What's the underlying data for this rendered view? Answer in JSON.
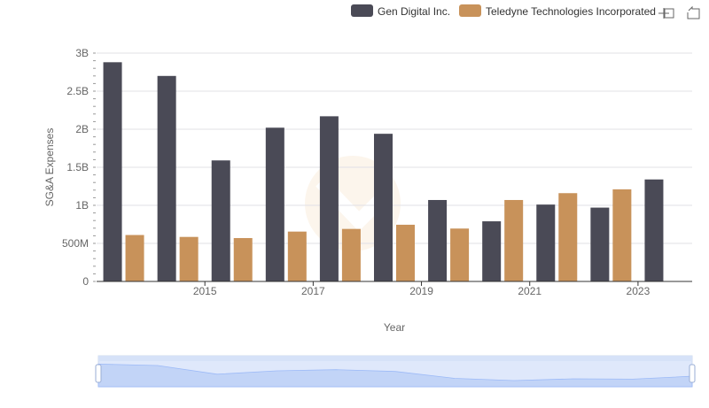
{
  "chart_data": {
    "type": "bar",
    "x": [
      2014,
      2015,
      2016,
      2017,
      2018,
      2019,
      2020,
      2021,
      2022,
      2023,
      2024
    ],
    "x_tick_labels": [
      "2015",
      "2017",
      "2019",
      "2021",
      "2023"
    ],
    "xlabel": "Year",
    "ylabel": "SG&A Expenses",
    "ylim": [
      0,
      3000000000
    ],
    "y_tick_labels": [
      "0",
      "500M",
      "1B",
      "1.5B",
      "2B",
      "2.5B",
      "3B"
    ],
    "grid": true,
    "legend_position": "top-right",
    "series": [
      {
        "name": "Gen Digital Inc.",
        "color": "#4a4a56",
        "values": [
          2880000000,
          2700000000,
          1590000000,
          2020000000,
          2170000000,
          1940000000,
          1070000000,
          790000000,
          1010000000,
          970000000,
          1340000000
        ]
      },
      {
        "name": "Teledyne Technologies Incorporated",
        "color": "#c8925a",
        "values": [
          610000000,
          585000000,
          570000000,
          655000000,
          690000000,
          745000000,
          695000000,
          1070000000,
          1160000000,
          1210000000,
          null
        ]
      }
    ]
  },
  "toolbar": {
    "zoom_icon": "zoom-icon",
    "restore_icon": "restore-icon"
  }
}
